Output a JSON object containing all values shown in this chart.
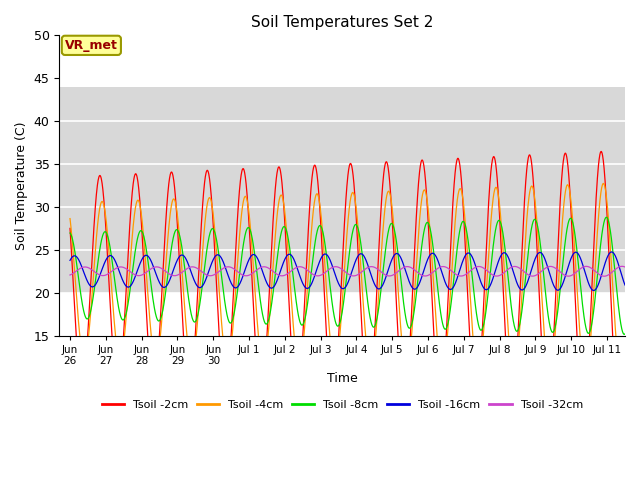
{
  "title": "Soil Temperatures Set 2",
  "xlabel": "Time",
  "ylabel": "Soil Temperature (C)",
  "ylim": [
    15,
    50
  ],
  "yticks": [
    15,
    20,
    25,
    30,
    35,
    40,
    45,
    50
  ],
  "colors": {
    "Tsoil -2cm": "#ff0000",
    "Tsoil -4cm": "#ff9900",
    "Tsoil -8cm": "#00dd00",
    "Tsoil -16cm": "#0000dd",
    "Tsoil -32cm": "#cc44cc"
  },
  "legend_labels": [
    "Tsoil -2cm",
    "Tsoil -4cm",
    "Tsoil -8cm",
    "Tsoil -16cm",
    "Tsoil -32cm"
  ],
  "vr_met_label": "VR_met",
  "background_color": "#ffffff",
  "shaded_band_lo": 20,
  "shaded_band_hi": 44,
  "shaded_color": "#d8d8d8",
  "num_days": 15.5,
  "samples_per_day": 144,
  "xtick_positions": [
    0,
    1,
    2,
    3,
    4,
    5,
    6,
    7,
    8,
    9,
    10,
    11,
    12,
    13,
    14,
    15
  ],
  "xtick_labels": [
    "Jun\n26",
    "Jun\n27",
    "Jun\n28",
    "Jun\n29",
    "Jun\n30",
    "Jul 1",
    "Jul 2",
    "Jul 3",
    "Jul 4",
    "Jul 5",
    "Jul 6",
    "Jul 7",
    "Jul 8",
    "Jul 9",
    "Jul 10",
    "Jul 11"
  ],
  "series_params": {
    "Tsoil -2cm": {
      "mean": 21.5,
      "amp_base": 12.0,
      "amp_growth": 0.2,
      "lag_hrs": 0.0
    },
    "Tsoil -4cm": {
      "mean": 21.5,
      "amp_base": 9.0,
      "amp_growth": 0.15,
      "lag_hrs": 1.5
    },
    "Tsoil -8cm": {
      "mean": 22.0,
      "amp_base": 5.0,
      "amp_growth": 0.12,
      "lag_hrs": 3.5
    },
    "Tsoil -16cm": {
      "mean": 22.5,
      "amp_base": 1.8,
      "amp_growth": 0.03,
      "lag_hrs": 7.0
    },
    "Tsoil -32cm": {
      "mean": 22.5,
      "amp_base": 0.5,
      "amp_growth": 0.005,
      "lag_hrs": 14.0
    }
  }
}
